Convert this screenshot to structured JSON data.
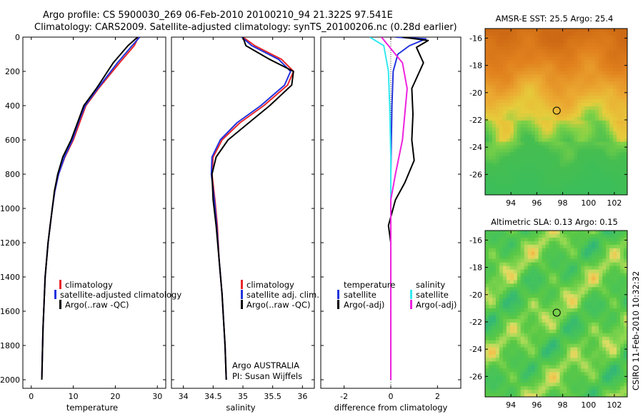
{
  "header": {
    "line1": "Argo profile: CS 5900030_269 06-Feb-2010 20100210_94 21.322S 97.541E",
    "line2": "Climatology: CARS2009. Satellite-adjusted climatology: synTS_20100206.nc (0.28d earlier)"
  },
  "colors": {
    "climatology": "#e8262a",
    "satellite": "#2233dd",
    "argo": "#000000",
    "satellite_salinity": "#33e8f0",
    "argo_salinity": "#ee22dd"
  },
  "side_label": "CSIRO 11-Feb-2010 10:32:32",
  "chart_data": [
    {
      "type": "line",
      "id": "temperature",
      "xlabel": "temperature",
      "ylabel": "",
      "xlim": [
        -2,
        32
      ],
      "ylim": [
        2050,
        0
      ],
      "xticks": [
        0,
        10,
        20,
        30
      ],
      "yticks": [
        0,
        200,
        400,
        600,
        800,
        1000,
        1200,
        1400,
        1600,
        1800,
        2000
      ],
      "series": [
        {
          "name": "climatology",
          "color": "#e8262a",
          "x": [
            25.5,
            24.5,
            21,
            16,
            13,
            11.5,
            10,
            8,
            6.5,
            5.6,
            5,
            4.5,
            4,
            3.3,
            2.8,
            2.5
          ],
          "y": [
            0,
            50,
            150,
            300,
            400,
            500,
            600,
            700,
            800,
            900,
            1000,
            1100,
            1200,
            1400,
            1700,
            2000
          ]
        },
        {
          "name": "satellite-adjusted climatology",
          "color": "#2233dd",
          "x": [
            25.8,
            24,
            20.5,
            15.8,
            12.8,
            11.2,
            9.8,
            7.9,
            6.5,
            5.6,
            5,
            4.5,
            4,
            3.3,
            2.8,
            2.5
          ],
          "y": [
            0,
            50,
            150,
            300,
            400,
            500,
            600,
            700,
            800,
            900,
            1000,
            1100,
            1200,
            1400,
            1700,
            2000
          ]
        },
        {
          "name": "Argo(..raw -QC)",
          "color": "#000000",
          "x": [
            25.3,
            23,
            19.5,
            15.5,
            12.5,
            11,
            9.5,
            7.5,
            6.3,
            5.5,
            5,
            4.5,
            4,
            3.3,
            2.8,
            2.5
          ],
          "y": [
            0,
            50,
            150,
            300,
            400,
            500,
            600,
            700,
            800,
            900,
            1000,
            1100,
            1200,
            1400,
            1700,
            2000
          ]
        }
      ]
    },
    {
      "type": "line",
      "id": "salinity",
      "xlabel": "salinity",
      "ylabel": "",
      "xlim": [
        33.8,
        36.2
      ],
      "ylim": [
        2050,
        0
      ],
      "xticks": [
        34,
        34.5,
        35,
        35.5,
        36
      ],
      "series": [
        {
          "name": "climatology",
          "color": "#e8262a",
          "x": [
            35.0,
            35.2,
            35.65,
            35.85,
            35.75,
            35.35,
            34.95,
            34.65,
            34.5,
            34.48,
            34.53,
            34.57,
            34.6,
            34.65,
            34.7,
            34.72
          ],
          "y": [
            0,
            50,
            130,
            200,
            280,
            400,
            500,
            600,
            700,
            800,
            950,
            1100,
            1300,
            1500,
            1800,
            2000
          ]
        },
        {
          "name": "satellite adj. clim.",
          "color": "#2233dd",
          "x": [
            34.98,
            35.15,
            35.6,
            35.8,
            35.7,
            35.3,
            34.9,
            34.62,
            34.48,
            34.47,
            34.52,
            34.56,
            34.6,
            34.65,
            34.7,
            34.72
          ],
          "y": [
            0,
            50,
            130,
            200,
            280,
            400,
            500,
            600,
            700,
            800,
            950,
            1100,
            1300,
            1500,
            1800,
            2000
          ]
        },
        {
          "name": "Argo(..raw -QC)",
          "color": "#000000",
          "x": [
            35.0,
            35.05,
            35.45,
            35.85,
            35.82,
            35.45,
            35.1,
            34.75,
            34.55,
            34.48,
            34.5,
            34.55,
            34.6,
            34.65,
            34.7,
            34.72
          ],
          "y": [
            0,
            50,
            130,
            200,
            280,
            400,
            500,
            600,
            700,
            800,
            950,
            1100,
            1300,
            1500,
            1800,
            2000
          ]
        }
      ],
      "annotation": [
        "Argo AUSTRALIA",
        "PI: Susan Wijffels"
      ]
    },
    {
      "type": "line",
      "id": "difference",
      "xlabel": "difference from climatology",
      "ylabel": "",
      "xlim": [
        -3,
        3
      ],
      "ylim": [
        2050,
        0
      ],
      "xticks": [
        -2,
        0,
        2
      ],
      "legend_groups": [
        "temperature",
        "salinity"
      ],
      "series": [
        {
          "name": "satellite",
          "group": "temperature",
          "color": "#2233dd",
          "x": [
            0.2,
            1.5,
            0.8,
            0.3,
            0.1,
            0.05,
            0.0,
            0.0,
            0.0
          ],
          "y": [
            0,
            10,
            50,
            100,
            200,
            400,
            800,
            1200,
            2000
          ]
        },
        {
          "name": "Argo(-adj)",
          "group": "temperature",
          "color": "#000000",
          "x": [
            0.5,
            1.6,
            1.1,
            1.4,
            0.9,
            0.95,
            0.9,
            1.0,
            0.6,
            0.2,
            -0.1,
            0.0,
            0.0,
            0.0
          ],
          "y": [
            0,
            20,
            60,
            150,
            300,
            450,
            600,
            720,
            850,
            950,
            1100,
            1200,
            1600,
            2000
          ]
        },
        {
          "name": "satellite",
          "group": "salinity",
          "color": "#33e8f0",
          "x": [
            -0.9,
            -0.3,
            -0.1,
            -0.05,
            0.0,
            0.0,
            0.0,
            0.0
          ],
          "y": [
            0,
            50,
            200,
            400,
            700,
            1000,
            1500,
            2000
          ]
        },
        {
          "name": "Argo(-adj)",
          "group": "salinity",
          "color": "#ee22dd",
          "x": [
            -0.4,
            -0.1,
            0.5,
            0.7,
            0.6,
            0.5,
            0.2,
            0.0,
            0.0,
            0.0
          ],
          "y": [
            0,
            50,
            150,
            300,
            450,
            600,
            800,
            950,
            1200,
            2000
          ]
        }
      ]
    },
    {
      "type": "heatmap",
      "id": "sst-map",
      "title": "AMSR-E SST: 25.5 Argo: 25.4",
      "xlim": [
        92,
        103
      ],
      "ylim": [
        -27.5,
        -15.3
      ],
      "xticks": [
        94,
        96,
        98,
        100,
        102
      ],
      "yticks": [
        -16,
        -18,
        -20,
        -22,
        -24,
        -26
      ],
      "argo_position": {
        "lon": 97.54,
        "lat": -21.32
      }
    },
    {
      "type": "heatmap",
      "id": "sla-map",
      "title": "Altimetric SLA: 0.13 Argo: 0.15",
      "xlim": [
        92,
        103
      ],
      "ylim": [
        -27.5,
        -15.3
      ],
      "xticks": [
        94,
        96,
        98,
        100,
        102
      ],
      "yticks": [
        -16,
        -18,
        -20,
        -22,
        -24,
        -26
      ],
      "argo_position": {
        "lon": 97.54,
        "lat": -21.32
      }
    }
  ],
  "legends": {
    "temperature": [
      "climatology",
      "satellite-adjusted climatology",
      "Argo(..raw -QC)"
    ],
    "salinity": [
      "climatology",
      "satellite adj. clim.",
      "Argo(..raw -QC)"
    ],
    "difference_headers": [
      "temperature",
      "salinity"
    ],
    "difference_temperature": [
      "satellite",
      "Argo(-adj)"
    ],
    "difference_salinity": [
      "satellite",
      "Argo(-adj)"
    ]
  }
}
